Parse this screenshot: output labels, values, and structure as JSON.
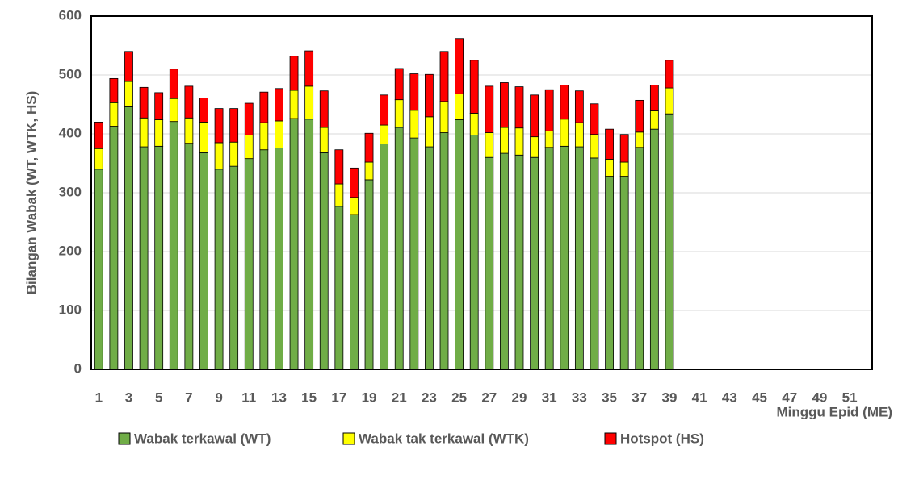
{
  "chart_data": {
    "type": "stacked_bar",
    "y_label": "Bilangan  Wabak (WT, WTK, HS)",
    "x_label": "Minggu Epid (ME)",
    "categories": [
      1,
      null,
      3,
      null,
      5,
      null,
      7,
      null,
      9,
      null,
      11,
      null,
      13,
      null,
      15,
      null,
      17,
      null,
      19,
      null,
      21,
      null,
      23,
      null,
      25,
      null,
      27,
      null,
      29,
      null,
      31,
      null,
      33,
      null,
      35,
      null,
      37,
      null,
      39,
      null,
      41,
      null,
      43,
      null,
      45,
      null,
      47,
      null,
      49,
      null,
      51,
      null
    ],
    "series": [
      {
        "name": "Wabak terkawal (WT)",
        "color": "#70ad47",
        "values": [
          340,
          413,
          446,
          378,
          379,
          421,
          384,
          368,
          340,
          345,
          358,
          373,
          376,
          426,
          425,
          368,
          277,
          263,
          322,
          383,
          411,
          393,
          378,
          402,
          424,
          398,
          360,
          367,
          364,
          360,
          377,
          379,
          378,
          359,
          328,
          328,
          377,
          408,
          434,
          null,
          null,
          null,
          null,
          null,
          null,
          null,
          null,
          null,
          null,
          null,
          null,
          null
        ]
      },
      {
        "name": "Wabak tak terkawal (WTK)",
        "color": "#ffff00",
        "values": [
          35,
          40,
          43,
          49,
          45,
          39,
          43,
          52,
          45,
          41,
          40,
          46,
          46,
          48,
          56,
          43,
          38,
          29,
          30,
          32,
          47,
          47,
          51,
          53,
          44,
          37,
          42,
          44,
          46,
          35,
          28,
          46,
          41,
          40,
          29,
          24,
          26,
          31,
          44,
          null,
          null,
          null,
          null,
          null,
          null,
          null,
          null,
          null,
          null,
          null,
          null,
          null
        ]
      },
      {
        "name": "Hotspot (HS)",
        "color": "#ff0000",
        "values": [
          45,
          41,
          51,
          52,
          46,
          50,
          54,
          41,
          58,
          57,
          54,
          52,
          55,
          58,
          60,
          62,
          58,
          50,
          49,
          51,
          53,
          62,
          72,
          85,
          94,
          90,
          79,
          76,
          70,
          71,
          70,
          58,
          54,
          52,
          51,
          47,
          54,
          44,
          47,
          null,
          null,
          null,
          null,
          null,
          null,
          null,
          null,
          null,
          null,
          null,
          null,
          null
        ]
      }
    ],
    "ylim": [
      0,
      600
    ],
    "yticks": [
      0,
      100,
      200,
      300,
      400,
      500,
      600
    ],
    "grid": true
  }
}
